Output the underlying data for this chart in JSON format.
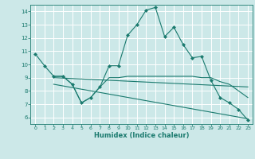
{
  "xlabel": "Humidex (Indice chaleur)",
  "bg_color": "#cce8e8",
  "grid_color": "#ffffff",
  "line_color": "#1a7a6e",
  "xlim": [
    -0.5,
    23.5
  ],
  "ylim": [
    5.5,
    14.5
  ],
  "yticks": [
    6,
    7,
    8,
    9,
    10,
    11,
    12,
    13,
    14
  ],
  "xticks": [
    0,
    1,
    2,
    3,
    4,
    5,
    6,
    7,
    8,
    9,
    10,
    11,
    12,
    13,
    14,
    15,
    16,
    17,
    18,
    19,
    20,
    21,
    22,
    23
  ],
  "line1_x": [
    0,
    1,
    2,
    3,
    4,
    5,
    6,
    7,
    8,
    9,
    10,
    11,
    12,
    13,
    14,
    15,
    16,
    17,
    18,
    19,
    20,
    21,
    22,
    23
  ],
  "line1_y": [
    10.8,
    9.9,
    9.1,
    9.1,
    8.5,
    7.1,
    7.5,
    8.3,
    9.9,
    9.9,
    12.2,
    13.0,
    14.1,
    14.3,
    12.1,
    12.8,
    11.5,
    10.5,
    10.6,
    8.8,
    7.5,
    7.1,
    6.6,
    5.8
  ],
  "line2_x": [
    2,
    3,
    4,
    5,
    6,
    7,
    8,
    9,
    10,
    11,
    12,
    13,
    14,
    15,
    16,
    17,
    18,
    19,
    20,
    21,
    22,
    23
  ],
  "line2_y": [
    9.1,
    9.1,
    8.5,
    7.1,
    7.5,
    8.3,
    9.0,
    9.0,
    9.1,
    9.1,
    9.1,
    9.1,
    9.1,
    9.1,
    9.1,
    9.1,
    9.0,
    9.0,
    8.7,
    8.5,
    8.0,
    7.5
  ],
  "line3_x": [
    2,
    23
  ],
  "line3_y": [
    9.0,
    8.3
  ],
  "line4_x": [
    2,
    23
  ],
  "line4_y": [
    8.5,
    5.9
  ]
}
